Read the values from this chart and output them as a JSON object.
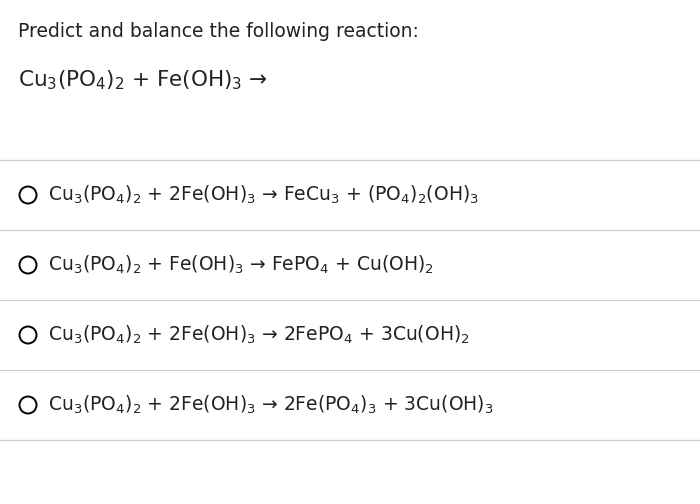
{
  "background_color": "#ffffff",
  "title_text": "Predict and balance the following reaction:",
  "title_fontsize": 13.5,
  "reaction_text": "Cu$_3$(PO$_4$)$_2$ + Fe(OH)$_3$ →",
  "reaction_fontsize": 15.5,
  "options": [
    {
      "text": "Cu$_3$(PO$_4$)$_2$ + 2Fe(OH)$_3$ → FeCu$_3$ + (PO$_4$)$_2$(OH)$_3$"
    },
    {
      "text": "Cu$_3$(PO$_4$)$_2$ + Fe(OH)$_3$ → FePO$_4$ + Cu(OH)$_2$"
    },
    {
      "text": "Cu$_3$(PO$_4$)$_2$ + 2Fe(OH)$_3$ → 2FePO$_4$ + 3Cu(OH)$_2$"
    },
    {
      "text": "Cu$_3$(PO$_4$)$_2$ + 2Fe(OH)$_3$ → 2Fe(PO$_4$)$_3$ + 3Cu(OH)$_3$"
    }
  ],
  "option_fontsize": 13.5,
  "circle_color": "#000000",
  "divider_color": "#cccccc",
  "text_color": "#222222"
}
